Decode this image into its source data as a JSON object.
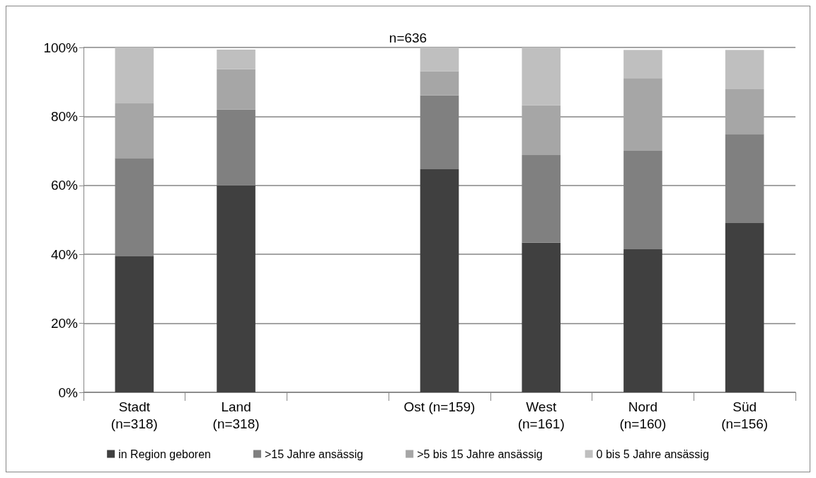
{
  "chart_data": {
    "type": "bar",
    "stacked": true,
    "title": "n=636",
    "categories": [
      "Stadt\n(n=318)",
      "Land\n(n=318)",
      null,
      "Ost (n=159)",
      "West\n(n=161)",
      "Nord\n(n=160)",
      "Süd\n(n=156)"
    ],
    "series": [
      {
        "name": "in Region geboren",
        "color": "#404040",
        "values": [
          39.4,
          60.0,
          null,
          64.7,
          43.4,
          41.5,
          49.1
        ]
      },
      {
        "name": ">15 Jahre ansässig",
        "color": "#808080",
        "values": [
          28.5,
          22.0,
          null,
          21.4,
          25.4,
          28.5,
          25.8
        ]
      },
      {
        "name": ">5 bis 15 Jahre ansässig",
        "color": "#a6a6a6",
        "values": [
          15.9,
          11.7,
          null,
          7.0,
          14.4,
          21.1,
          13.0
        ]
      },
      {
        "name": "0 bis 5 Jahre ansässig",
        "color": "#bfbfbf",
        "values": [
          16.2,
          5.7,
          null,
          6.9,
          16.8,
          8.2,
          11.4
        ]
      }
    ],
    "ylim": [
      0,
      100
    ],
    "yticks": [
      {
        "value": 0,
        "label": "0%"
      },
      {
        "value": 20,
        "label": "20%"
      },
      {
        "value": 40,
        "label": "40%"
      },
      {
        "value": 60,
        "label": "60%"
      },
      {
        "value": 80,
        "label": "80%"
      },
      {
        "value": 100,
        "label": "100%"
      }
    ],
    "grid": "y",
    "legend": "bottom"
  }
}
